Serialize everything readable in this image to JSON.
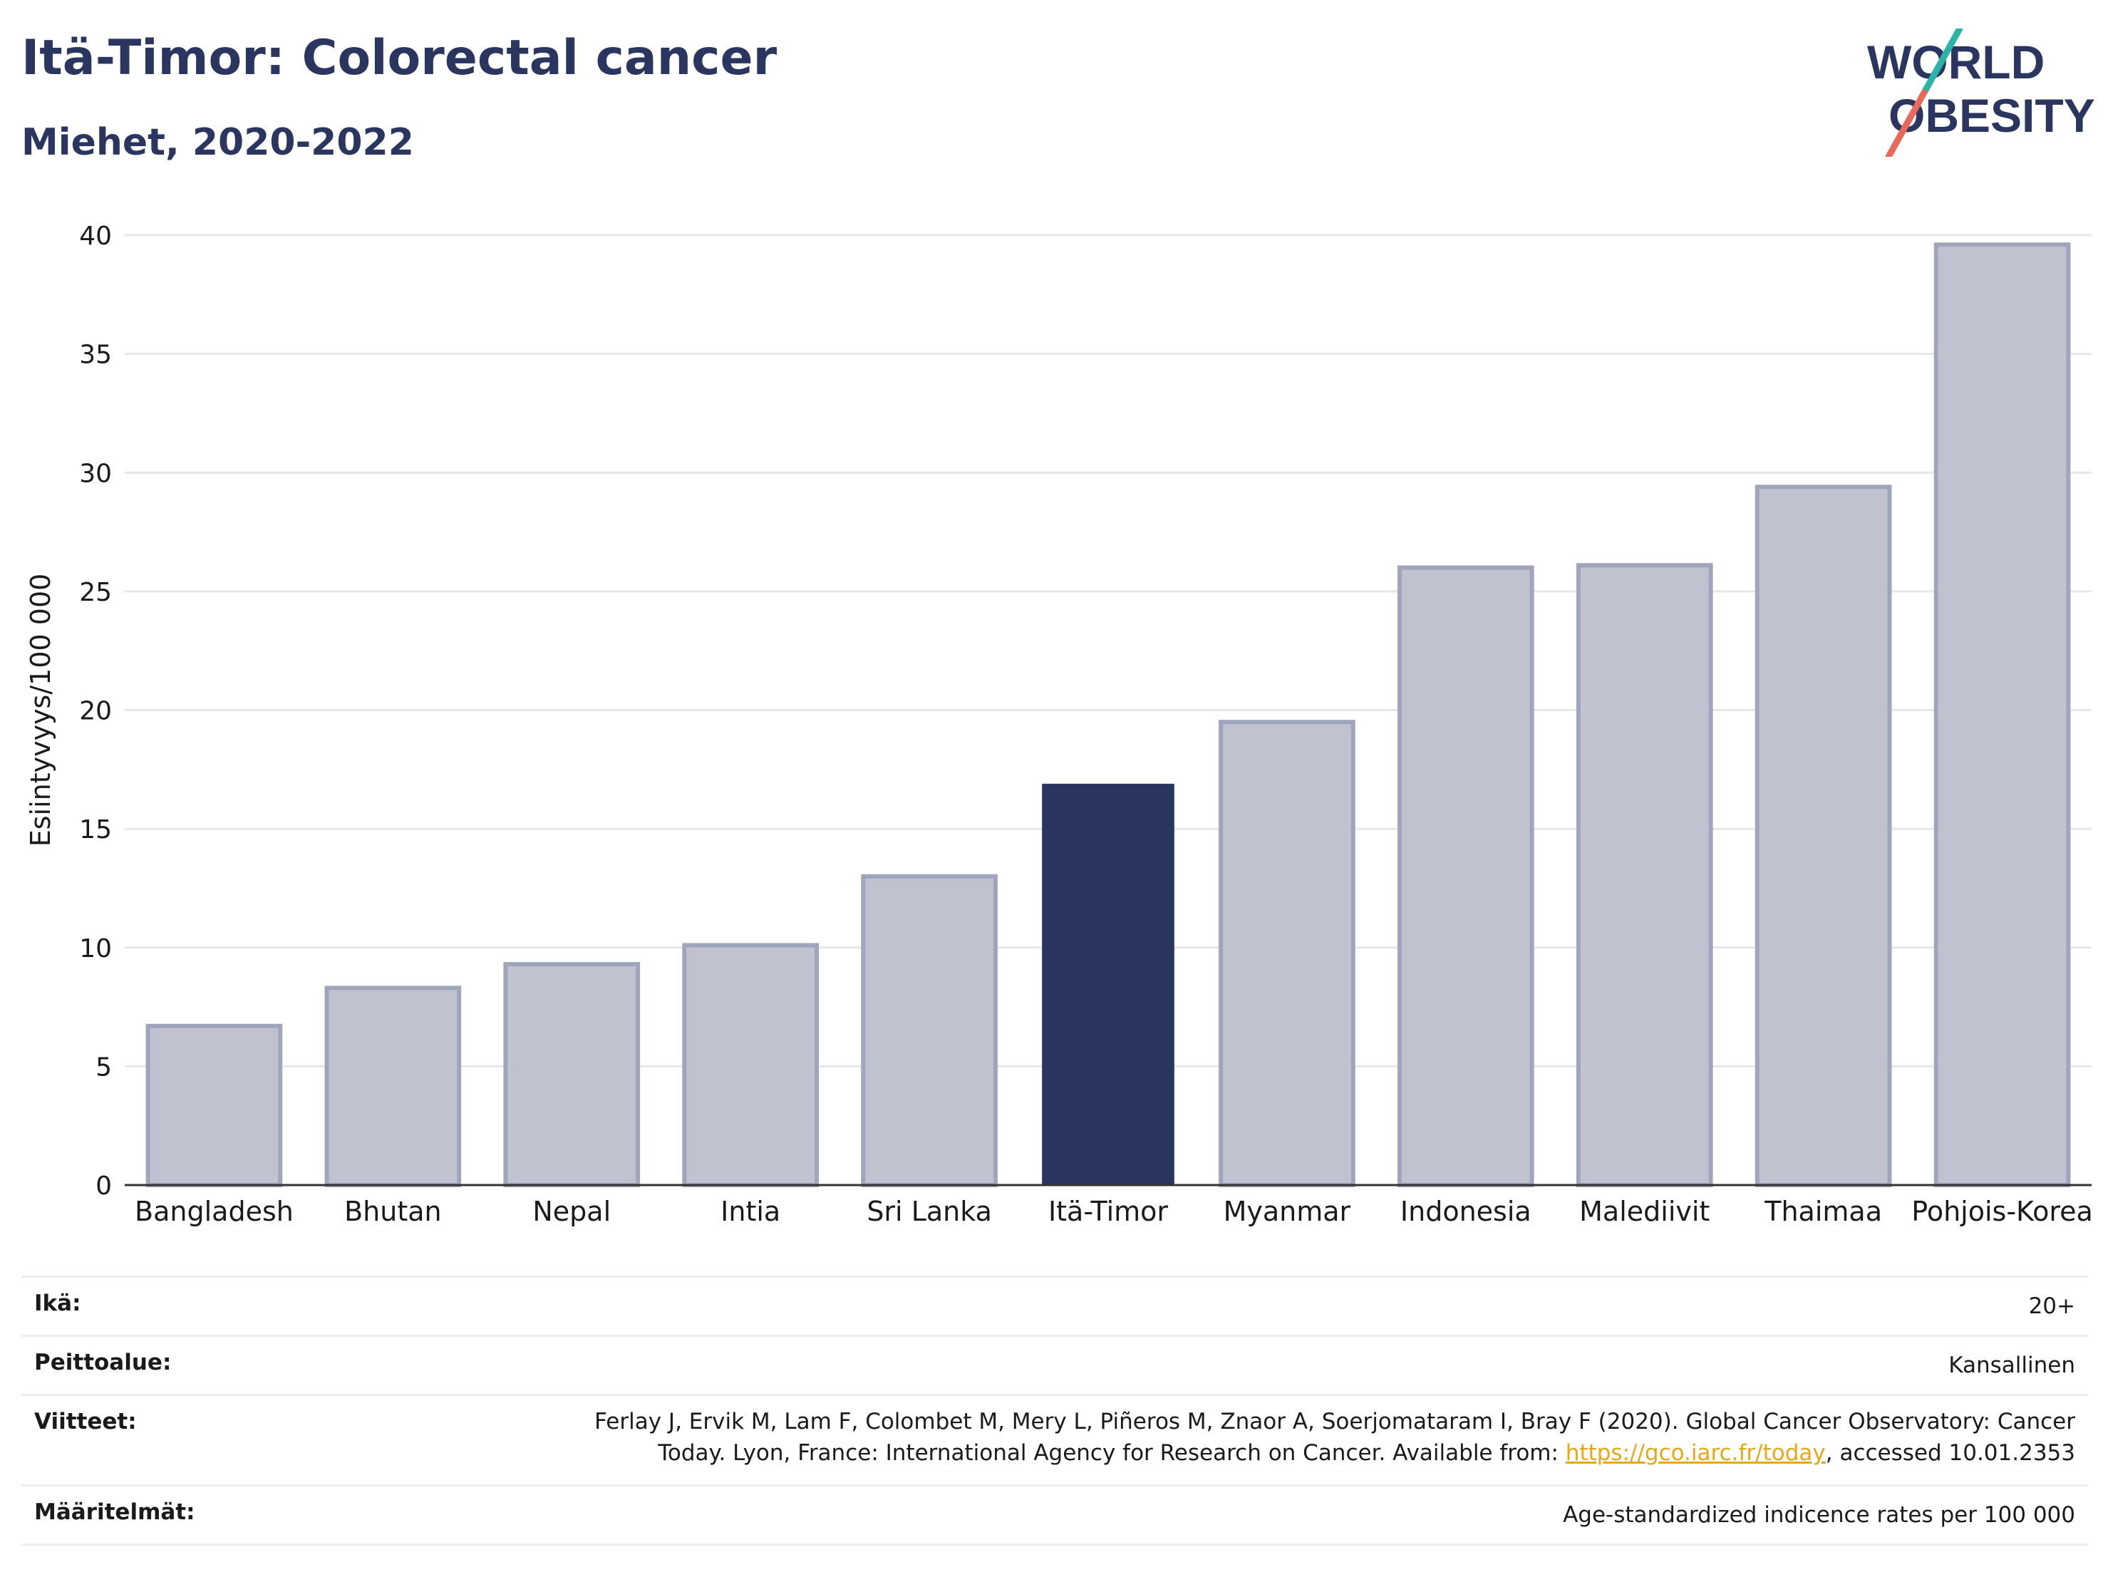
{
  "header": {
    "title": "Itä-Timor: Colorectal cancer",
    "subtitle": "Miehet, 2020-2022"
  },
  "logo": {
    "line1": "WORLD",
    "line2": "OBESITY",
    "colors": {
      "text": "#2a3560",
      "slash_top": "#2bb3a8",
      "slash_bottom": "#e8695a"
    }
  },
  "chart_data": {
    "type": "bar",
    "categories": [
      "Bangladesh",
      "Bhutan",
      "Nepal",
      "Intia",
      "Sri Lanka",
      "Itä-Timor",
      "Myanmar",
      "Indonesia",
      "Malediivit",
      "Thaimaa",
      "Pohjois-Korea"
    ],
    "values": [
      6.7,
      8.3,
      9.3,
      10.1,
      13.0,
      16.9,
      19.5,
      26.0,
      26.1,
      29.4,
      39.6
    ],
    "highlight": "Itä-Timor",
    "ylabel": "Esiintyvyys/100 000",
    "ylim": [
      0,
      40
    ],
    "yticks": [
      0,
      5,
      10,
      15,
      20,
      25,
      30,
      35,
      40
    ],
    "grid": true,
    "colors": {
      "bar": "#c0c3cf",
      "bar_edge": "#9fa5bb",
      "highlight": "#2a3560"
    }
  },
  "info": {
    "rows": [
      {
        "label": "Ikä:",
        "value": "20+"
      },
      {
        "label": "Peittoalue:",
        "value": "Kansallinen"
      },
      {
        "label": "Viitteet:",
        "value_line1": "Ferlay J, Ervik M, Lam F, Colombet M, Mery L, Piñeros M, Znaor A, Soerjomataram I, Bray F (2020). Global Cancer Observatory: Cancer",
        "value_line2_pre": "Today. Lyon, France: International Agency for Research on Cancer. Available from: ",
        "link": "https://gco.iarc.fr/today",
        "value_line2_post": ", accessed 10.01.2353"
      },
      {
        "label": "Määritelmät:",
        "value": "Age-standardized indicence rates per 100 000"
      }
    ]
  }
}
